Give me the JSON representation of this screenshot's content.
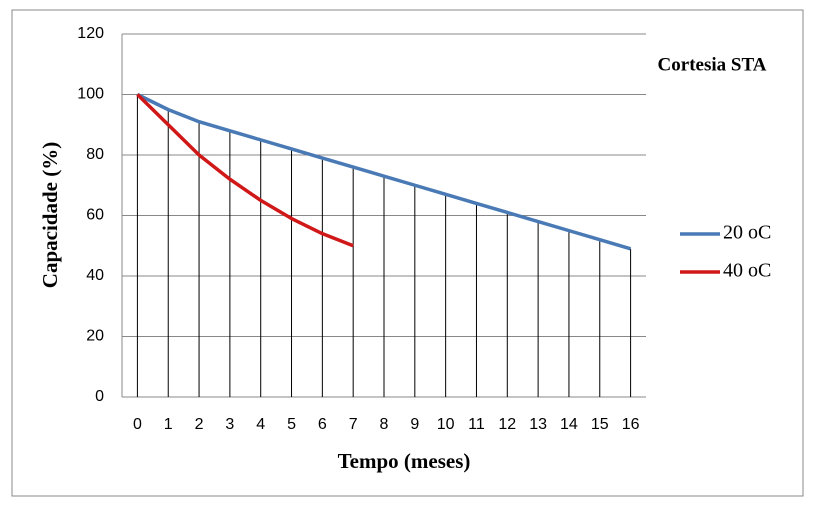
{
  "chart_data": {
    "type": "line",
    "annotation": "Cortesia STA",
    "xlabel": "Tempo (meses)",
    "ylabel": "Capacidade (%)",
    "categories": [
      "0",
      "1",
      "2",
      "3",
      "4",
      "5",
      "6",
      "7",
      "8",
      "9",
      "10",
      "11",
      "12",
      "13",
      "14",
      "15",
      "16"
    ],
    "series": [
      {
        "name": "20 oC",
        "color": "#4a7ab5",
        "values": [
          100,
          95,
          91,
          88,
          85,
          82,
          79,
          76,
          73,
          70,
          67,
          64,
          61,
          58,
          55,
          52,
          49
        ]
      },
      {
        "name": "40 oC",
        "color": "#d01818",
        "values": [
          100,
          90,
          80,
          72,
          65,
          59,
          54,
          50,
          null,
          null,
          null,
          null,
          null,
          null,
          null,
          null,
          null
        ]
      }
    ],
    "ylim": [
      0,
      120
    ],
    "yticks": [
      0,
      20,
      40,
      60,
      80,
      100,
      120
    ],
    "grid": true,
    "drop_lines": true,
    "legend": "right"
  }
}
